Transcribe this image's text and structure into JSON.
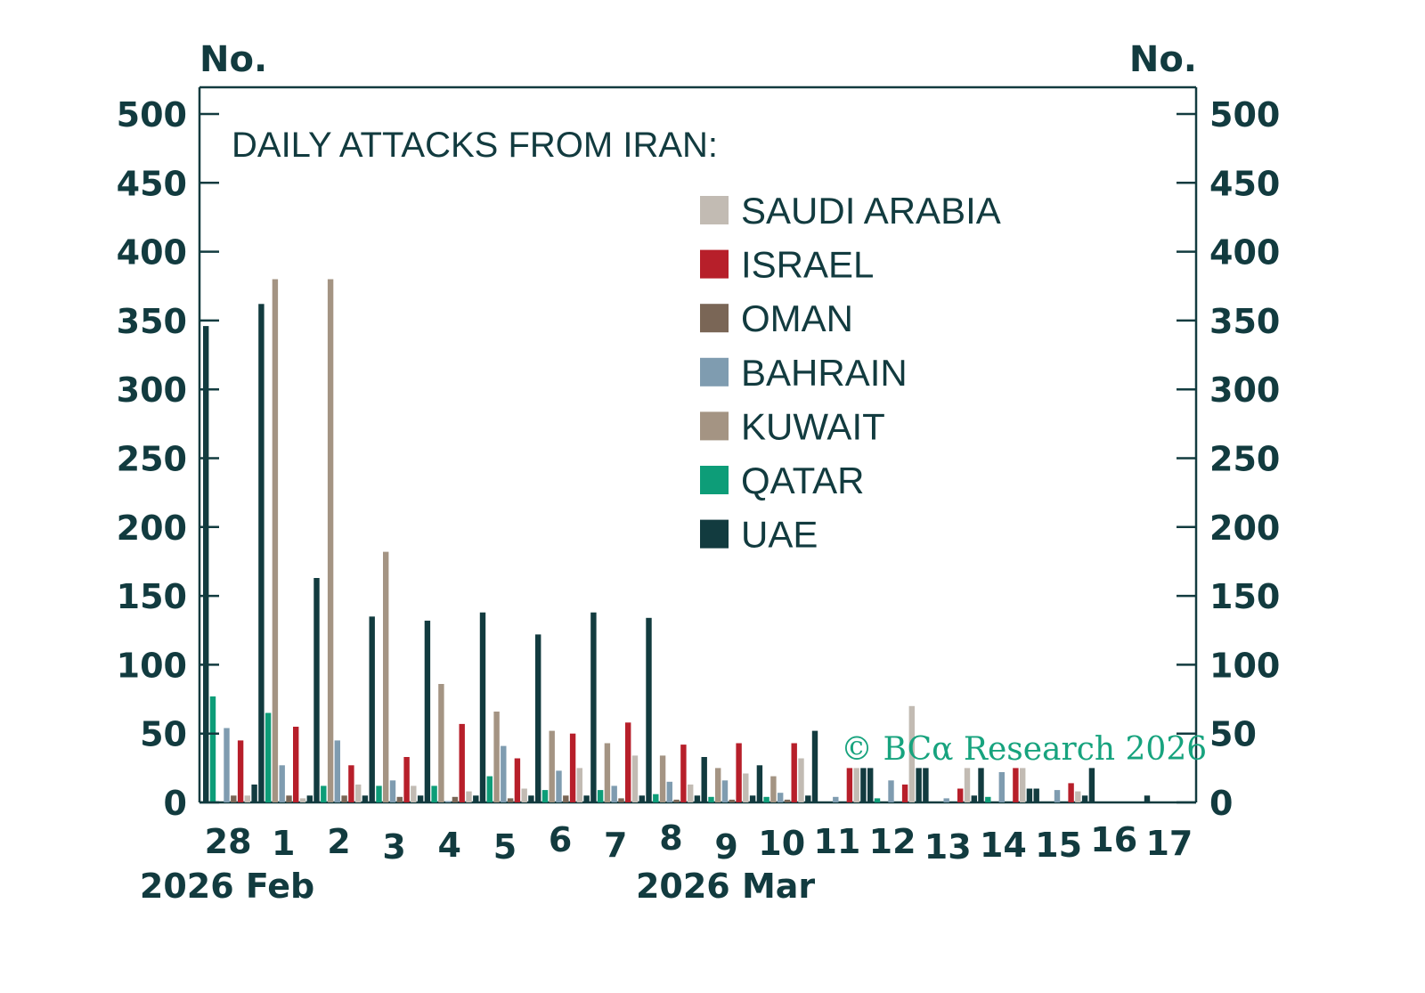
{
  "chart_data": {
    "type": "bar",
    "title": "DAILY ATTACKS FROM IRAN:",
    "ylabel_left": "No.",
    "ylabel_right": "No.",
    "xlabel": "",
    "ylim": [
      0,
      500
    ],
    "yticks": [
      0,
      50,
      100,
      150,
      200,
      250,
      300,
      350,
      400,
      450,
      500
    ],
    "ytick_labels": [
      "0",
      "50",
      "100",
      "150",
      "200",
      "250",
      "300",
      "350",
      "400",
      "450",
      "500"
    ],
    "grid": false,
    "legend_position": "top-center",
    "categories": [
      "28",
      "1",
      "2",
      "3",
      "4",
      "5",
      "6",
      "7",
      "8",
      "9",
      "10",
      "11",
      "12",
      "13",
      "14",
      "15",
      "16",
      "17"
    ],
    "month_labels": [
      {
        "label": "2026 Feb",
        "at_category": "28"
      },
      {
        "label": "2026 Mar",
        "at_category": "9"
      }
    ],
    "legend": [
      {
        "name": "SAUDI ARABIA",
        "color": "#c2bbb3"
      },
      {
        "name": "ISRAEL",
        "color": "#b71f2a"
      },
      {
        "name": "OMAN",
        "color": "#7a6656"
      },
      {
        "name": "BAHRAIN",
        "color": "#7f9cb0"
      },
      {
        "name": "KUWAIT",
        "color": "#a49483"
      },
      {
        "name": "QATAR",
        "color": "#0d9d78"
      },
      {
        "name": "UAE",
        "color": "#123b3f"
      }
    ],
    "series": [
      {
        "name": "UAE",
        "color": "#123b3f",
        "values": [
          346,
          362,
          163,
          135,
          132,
          138,
          122,
          138,
          134,
          33,
          27,
          52,
          25,
          25,
          25,
          10,
          25,
          5
        ]
      },
      {
        "name": "QATAR",
        "color": "#0d9d78",
        "values": [
          77,
          65,
          12,
          12,
          12,
          19,
          9,
          9,
          6,
          4,
          4,
          0,
          3,
          0,
          4,
          0,
          0,
          0
        ]
      },
      {
        "name": "KUWAIT",
        "color": "#a49483",
        "values": [
          0,
          380,
          380,
          182,
          86,
          66,
          52,
          43,
          34,
          25,
          19,
          0,
          0,
          0,
          0,
          0,
          0,
          0
        ]
      },
      {
        "name": "BAHRAIN",
        "color": "#7f9cb0",
        "values": [
          54,
          27,
          45,
          16,
          1,
          41,
          23,
          12,
          15,
          16,
          7,
          4,
          16,
          3,
          22,
          9,
          0,
          0
        ]
      },
      {
        "name": "OMAN",
        "color": "#7a6656",
        "values": [
          5,
          5,
          5,
          4,
          4,
          3,
          5,
          3,
          2,
          2,
          2,
          0,
          0,
          0,
          0,
          0,
          0,
          0
        ]
      },
      {
        "name": "ISRAEL",
        "color": "#b71f2a",
        "values": [
          45,
          55,
          27,
          33,
          57,
          32,
          50,
          58,
          42,
          43,
          43,
          25,
          13,
          10,
          25,
          14,
          0,
          0
        ]
      },
      {
        "name": "SAUDI ARABIA",
        "color": "#c2bbb3",
        "values": [
          5,
          3,
          13,
          12,
          8,
          10,
          25,
          34,
          13,
          21,
          32,
          25,
          70,
          25,
          25,
          8,
          0,
          0
        ]
      },
      {
        "name": "",
        "color": "#123b3f",
        "values": [
          13,
          5,
          5,
          5,
          5,
          5,
          5,
          5,
          5,
          5,
          5,
          25,
          25,
          5,
          10,
          5,
          0,
          0
        ]
      }
    ],
    "annotation": "© BCα Research 2026"
  }
}
